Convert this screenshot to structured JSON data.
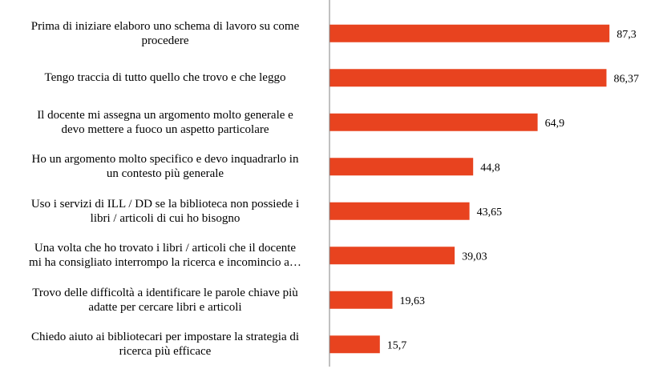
{
  "chart_data": {
    "type": "bar",
    "orientation": "horizontal",
    "categories": [
      "Prima di iniziare elaboro uno schema di lavoro su come\nprocedere",
      "Tengo traccia di tutto quello che trovo e che leggo",
      "Il docente mi assegna un argomento molto generale e\ndevo mettere a fuoco un aspetto particolare",
      "Ho un argomento molto specifico e devo inquadrarlo in\nun contesto più generale",
      "Uso i servizi di ILL / DD se la biblioteca non possiede i\nlibri / articoli di cui ho bisogno",
      "Una volta che ho trovato i libri / articoli che il docente\nmi ha consigliato interrompo la ricerca e incomincio a…",
      "Trovo delle difficoltà a identificare le parole chiave più\nadatte per cercare libri e articoli",
      "Chiedo aiuto ai bibliotecari per impostare la strategia di\nricerca più efficace"
    ],
    "values": [
      87.3,
      86.37,
      64.9,
      44.8,
      43.65,
      39.03,
      19.63,
      15.7
    ],
    "value_labels": [
      "87,3",
      "86,37",
      "64,9",
      "44,8",
      "43,65",
      "39,03",
      "19,63",
      "15,7"
    ],
    "xlim": [
      0,
      100
    ],
    "bar_color": "#e8431f",
    "grid": false,
    "legend": "none"
  }
}
